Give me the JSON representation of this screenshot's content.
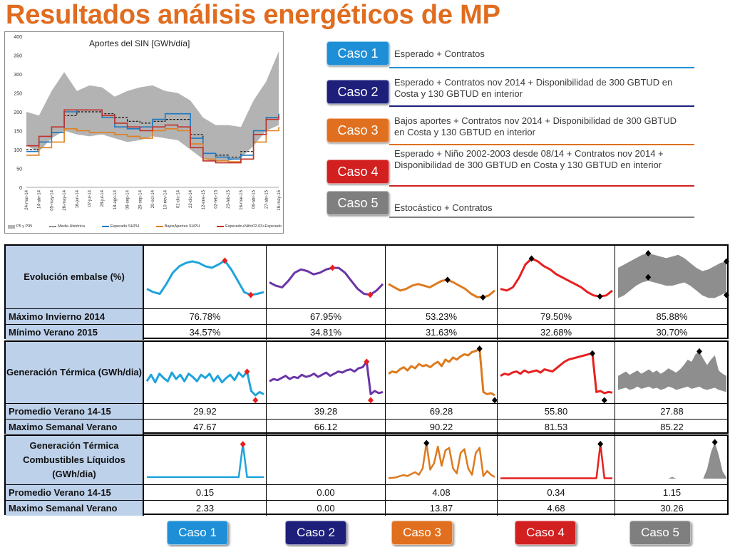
{
  "title": "Resultados análisis energéticos de MP",
  "colors": {
    "title": "#e06c1f",
    "caso1": "#1fa3dc",
    "caso2": "#6a35a8",
    "caso3": "#dd7a1e",
    "caso4": "#e81f1f",
    "caso5": "#8e8e8e",
    "btn1": "#1e8fd6",
    "btn2": "#1d1f7a",
    "btn3": "#e0701f",
    "btn4": "#d21f1f",
    "btn5": "#7f7f7f",
    "header_bg": "#bdd1ea"
  },
  "chart_data": [
    {
      "type": "line",
      "title": "Aportes del SIN [GWh/día]",
      "ylim": [
        0,
        400
      ],
      "yticks": [
        0,
        50,
        100,
        150,
        200,
        250,
        300,
        350,
        400
      ],
      "x": [
        "24-mar-14",
        "14-abr-14",
        "05-may-14",
        "26-may-14",
        "16-jun-14",
        "07-jul-14",
        "28-jul-14",
        "18-ago-14",
        "08-sep-14",
        "29-sep-14",
        "20-oct-14",
        "10-nov-14",
        "01-dic-14",
        "22-dic-14",
        "12-ene-15",
        "02-feb-15",
        "23-feb-15",
        "16-mar-15",
        "06-abr-15",
        "27-abr-15",
        "18-may-15"
      ],
      "band": {
        "name": "P5 y P95",
        "upper": [
          200,
          190,
          255,
          305,
          255,
          270,
          265,
          240,
          255,
          265,
          270,
          255,
          250,
          230,
          185,
          165,
          165,
          160,
          230,
          280,
          360
        ],
        "lower": [
          110,
          95,
          130,
          150,
          140,
          135,
          140,
          130,
          120,
          125,
          135,
          130,
          125,
          100,
          75,
          68,
          70,
          78,
          110,
          150,
          165
        ]
      },
      "series": [
        {
          "name": "Media Histórica",
          "values": [
            100,
            120,
            145,
            190,
            200,
            200,
            195,
            185,
            175,
            170,
            175,
            180,
            180,
            140,
            90,
            85,
            80,
            95,
            150,
            185,
            190
          ]
        },
        {
          "name": "Esperado SHPH",
          "values": [
            95,
            120,
            145,
            200,
            205,
            205,
            185,
            160,
            155,
            160,
            180,
            195,
            195,
            130,
            90,
            80,
            75,
            85,
            150,
            185,
            195
          ]
        },
        {
          "name": "BajosAportes SHPH",
          "values": [
            85,
            105,
            120,
            155,
            150,
            145,
            145,
            140,
            135,
            130,
            150,
            155,
            150,
            115,
            75,
            70,
            68,
            75,
            120,
            150,
            160
          ]
        },
        {
          "name": "Esperado+Niño02-03+Esperado",
          "values": [
            110,
            135,
            160,
            205,
            205,
            205,
            190,
            170,
            160,
            150,
            160,
            165,
            160,
            105,
            70,
            65,
            65,
            75,
            140,
            180,
            190
          ]
        }
      ]
    }
  ],
  "cases": [
    {
      "label": "Caso 1",
      "desc": "Esperado + Contratos"
    },
    {
      "label": "Caso 2",
      "desc": "Esperado + Contratos nov 2014 + Disponibilidad de 300 GBTUD en Costa y 130 GBTUD en interior"
    },
    {
      "label": "Caso 3",
      "desc": "Bajos aportes + Contratos nov 2014 + Disponibilidad de 300 GBTUD en Costa y 130 GBTUD en interior"
    },
    {
      "label": "Caso 4",
      "desc": "Esperado + Niño 2002-2003 desde 08/14 + Contratos nov 2014 + Disponibilidad de 300 GBTUD en Costa y 130 GBTUD en interior"
    },
    {
      "label": "Caso 5",
      "desc": "Estocástico + Contratos"
    }
  ],
  "panels": [
    {
      "header": "Evolución embalse (%)",
      "spark_series": [
        [
          42,
          38,
          36,
          48,
          62,
          70,
          74,
          76,
          74,
          70,
          68,
          72,
          76.8,
          66,
          52,
          38,
          34.6,
          36,
          38
        ],
        [
          50,
          46,
          44,
          52,
          62,
          66,
          64,
          60,
          62,
          66,
          68,
          67.9,
          62,
          52,
          42,
          36,
          34.8,
          40,
          48
        ],
        [
          48,
          44,
          40,
          42,
          46,
          48,
          46,
          44,
          48,
          52,
          53.2,
          50,
          46,
          42,
          36,
          32,
          31.6,
          34,
          40
        ],
        [
          42,
          40,
          44,
          56,
          72,
          79.5,
          76,
          70,
          66,
          60,
          56,
          52,
          48,
          44,
          38,
          34,
          32.7,
          34,
          40
        ]
      ],
      "band": {
        "upper": [
          68,
          72,
          76,
          80,
          84,
          85.9,
          84,
          82,
          80,
          82,
          84,
          80,
          74,
          68,
          64,
          66,
          70,
          74,
          76
        ],
        "lower": [
          30.7,
          34,
          40,
          46,
          50,
          52,
          50,
          48,
          46,
          46,
          48,
          50,
          46,
          40,
          34,
          31,
          30.7,
          34,
          38
        ]
      },
      "rows": [
        {
          "label": "Máximo Invierno 2014",
          "values": [
            "76.78%",
            "67.95%",
            "53.23%",
            "79.50%",
            "85.88%"
          ]
        },
        {
          "label": "Mínimo  Verano 2015",
          "values": [
            "34.57%",
            "34.81%",
            "31.63%",
            "32.68%",
            "30.70%"
          ]
        }
      ]
    },
    {
      "header": "Generación Térmica (GWh/dia)",
      "spark_series": [
        [
          30,
          42,
          28,
          44,
          36,
          30,
          46,
          34,
          42,
          30,
          44,
          38,
          30,
          42,
          36,
          44,
          30,
          40,
          28,
          36,
          42,
          32,
          46,
          38,
          47.7,
          12,
          4,
          10,
          6
        ],
        [
          30,
          34,
          32,
          36,
          40,
          34,
          38,
          36,
          42,
          38,
          40,
          44,
          38,
          42,
          46,
          40,
          44,
          48,
          46,
          50,
          52,
          48,
          54,
          56,
          66.1,
          6,
          12,
          8,
          10
        ],
        [
          44,
          48,
          46,
          52,
          56,
          50,
          58,
          54,
          62,
          58,
          60,
          56,
          62,
          66,
          58,
          70,
          66,
          74,
          70,
          76,
          80,
          78,
          84,
          86,
          90.2,
          10,
          6,
          8,
          4
        ],
        [
          40,
          44,
          42,
          46,
          48,
          44,
          50,
          46,
          48,
          50,
          46,
          52,
          50,
          48,
          54,
          60,
          66,
          70,
          72,
          74,
          76,
          78,
          80,
          81.5,
          10,
          12,
          8,
          10,
          9
        ]
      ],
      "band": {
        "upper": [
          40,
          44,
          48,
          42,
          46,
          50,
          44,
          48,
          52,
          46,
          50,
          44,
          48,
          54,
          50,
          46,
          52,
          60,
          70,
          66,
          80,
          85.2,
          72,
          60,
          70,
          78,
          50,
          44,
          40
        ],
        "lower": [
          14,
          16,
          18,
          14,
          16,
          20,
          16,
          18,
          20,
          16,
          18,
          14,
          16,
          20,
          18,
          14,
          16,
          18,
          20,
          16,
          18,
          20,
          16,
          14,
          16,
          18,
          14,
          12,
          10
        ]
      },
      "rows": [
        {
          "label": "Promedio Verano 14-15",
          "values": [
            "29.92",
            "39.28",
            "69.28",
            "55.80",
            "27.88"
          ]
        },
        {
          "label": "Maximo Semanal Verano",
          "values": [
            "47.67",
            "66.12",
            "90.22",
            "81.53",
            "85.22"
          ]
        }
      ]
    },
    {
      "header": "Generación Térmica Combustibles Líquidos (GWh/dia)",
      "spark_series": [
        [
          0.1,
          0.1,
          0.1,
          0.1,
          0.1,
          0.1,
          0.1,
          0.1,
          0.1,
          0.1,
          0.1,
          0.1,
          0.1,
          0.1,
          0.1,
          0.1,
          0.1,
          0.1,
          0.1,
          0.1,
          0.1,
          0.1,
          0.1,
          2.33,
          0.1,
          0.1,
          0.1,
          0.1,
          0.1
        ],
        [],
        [
          0.2,
          0.3,
          0.5,
          1.0,
          1.4,
          1.0,
          1.8,
          2.5,
          1.5,
          4.0,
          13.87,
          3.5,
          6.0,
          12.5,
          5.0,
          11.0,
          12.0,
          4.0,
          2.0,
          10.0,
          11.5,
          4.0,
          1.5,
          10.0,
          12.0,
          1.0,
          3.0,
          1.5,
          0.6
        ],
        [
          0.05,
          0.05,
          0.05,
          0.05,
          0.05,
          0.05,
          0.05,
          0.05,
          0.05,
          0.05,
          0.05,
          0.05,
          0.05,
          0.05,
          0.05,
          0.05,
          0.05,
          0.05,
          0.05,
          0.05,
          0.05,
          0.05,
          0.05,
          0.05,
          0.05,
          4.68,
          0.05,
          0.05,
          0.05
        ]
      ],
      "band": {
        "upper": [
          0,
          0,
          0,
          0,
          0,
          0,
          0,
          0,
          0,
          0,
          0,
          0,
          0,
          0,
          1.5,
          0,
          0,
          0,
          0,
          0,
          0,
          0,
          0,
          8,
          22,
          30.26,
          20,
          6,
          1
        ],
        "lower": [
          0,
          0,
          0,
          0,
          0,
          0,
          0,
          0,
          0,
          0,
          0,
          0,
          0,
          0,
          0,
          0,
          0,
          0,
          0,
          0,
          0,
          0,
          0,
          0,
          0,
          0,
          0,
          0,
          0
        ]
      },
      "rows": [
        {
          "label": "Promedio Verano 14-15",
          "values": [
            "0.15",
            "0.00",
            "4.08",
            "0.34",
            "1.15"
          ]
        },
        {
          "label": "Maximo Semanal Verano",
          "values": [
            "2.33",
            "0.00",
            "13.87",
            "4.68",
            "30.26"
          ]
        }
      ]
    }
  ],
  "bottom_buttons": [
    "Caso 1",
    "Caso 2",
    "Caso 3",
    "Caso 4",
    "Caso 5"
  ]
}
